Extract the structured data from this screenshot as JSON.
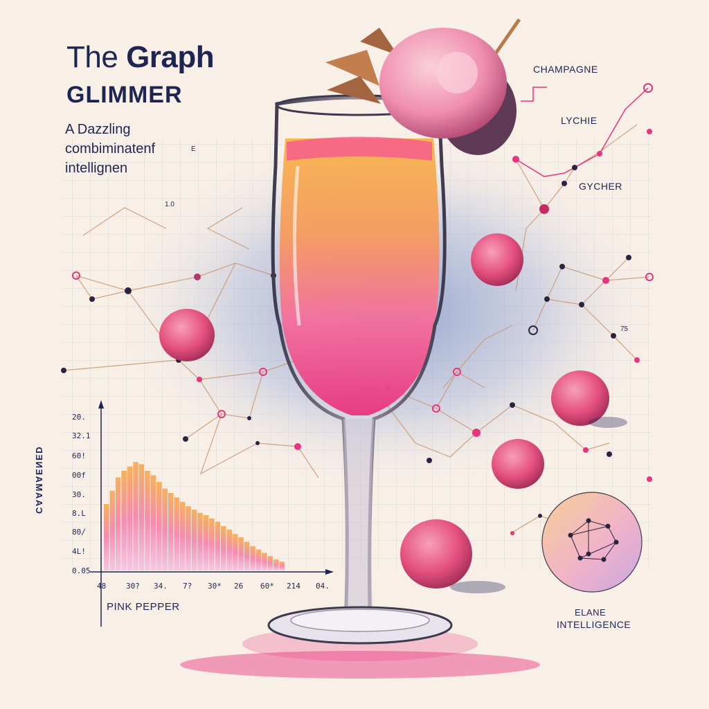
{
  "title": {
    "prefix": "The",
    "main": "Graph",
    "sub": "GLIMMER"
  },
  "tagline": [
    "A Dazzling",
    "combiminatenf",
    "intellignen"
  ],
  "labels": {
    "champagne": "CHAMPAGNE",
    "lychie": "LYCHIE",
    "gycher": "GYCHER",
    "pink_pepper": "PINK PEPPER",
    "elane": "ELANE",
    "intelligence": "INTELLIGENCE"
  },
  "histogram": {
    "ylabel": "CAAMAENED",
    "y_ticks": [
      "20.",
      "32.1",
      "60!",
      "00f",
      "30.",
      "8.L",
      "80/",
      "4L!",
      "0.05"
    ],
    "x_ticks": [
      "48",
      "30?",
      "34.",
      "7?",
      "30*",
      "26",
      "60*",
      "214",
      "04."
    ],
    "bars": [
      0.6,
      0.72,
      0.84,
      0.9,
      0.94,
      0.98,
      0.96,
      0.9,
      0.86,
      0.8,
      0.74,
      0.7,
      0.66,
      0.62,
      0.58,
      0.55,
      0.52,
      0.5,
      0.47,
      0.44,
      0.4,
      0.37,
      0.33,
      0.3,
      0.26,
      0.22,
      0.19,
      0.16,
      0.13,
      0.1,
      0.08
    ]
  },
  "fx_marks": [
    "1.0",
    "75",
    "E"
  ],
  "colors": {
    "ink": "#1f2552",
    "accent": "#e8347e",
    "rose": "#ef6a9c",
    "peach": "#f6a64a",
    "paper": "#f8efe6"
  }
}
